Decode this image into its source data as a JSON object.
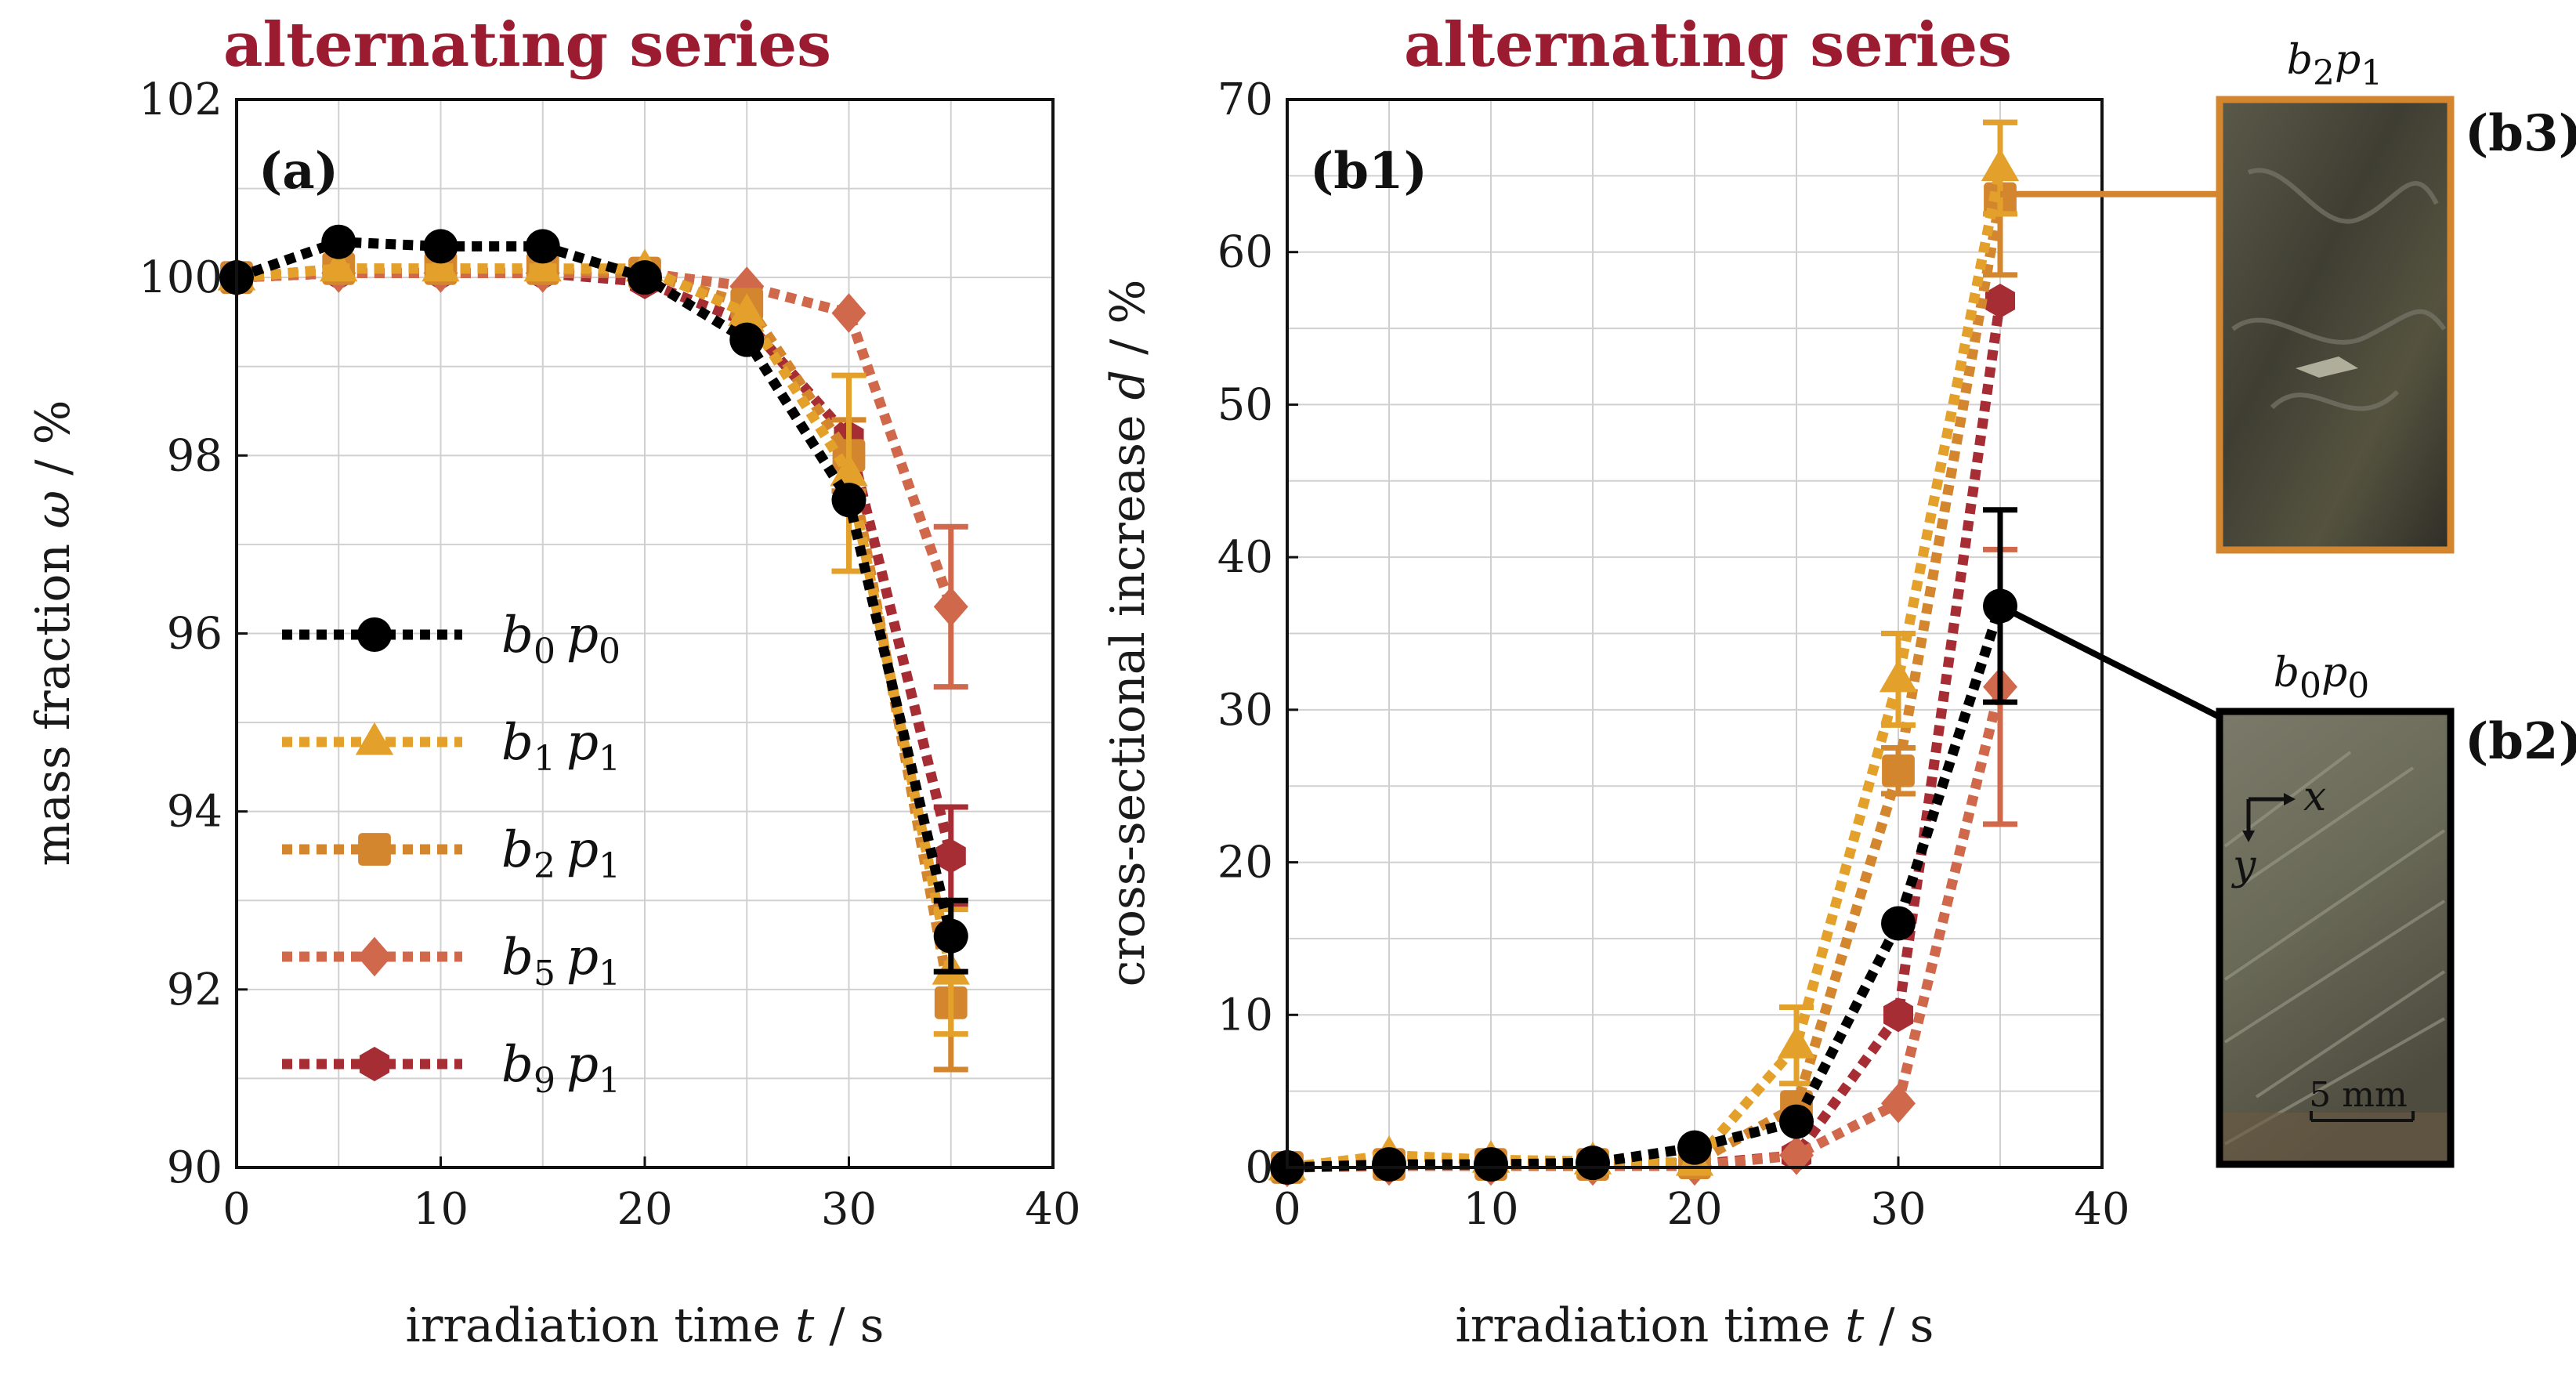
{
  "chart_data": [
    {
      "type": "line",
      "panel_label": "(a)",
      "title": "alternating series",
      "xlabel": "irradiation time",
      "xlabel_var": "t",
      "xlabel_unit": " / s",
      "ylabel": "mass fraction",
      "ylabel_var": "ω",
      "ylabel_unit": " / %",
      "xlim": [
        0,
        40
      ],
      "ylim": [
        90,
        102
      ],
      "xticks": [
        "0",
        "10",
        "20",
        "30",
        "40"
      ],
      "yticks": [
        "90",
        "92",
        "94",
        "96",
        "98",
        "100",
        "102"
      ],
      "grid": true,
      "legend_position": "center-left",
      "series": [
        {
          "name": "b0 p0",
          "b_sub": "0",
          "p_sub": "0",
          "color": "#000000",
          "marker": "circle",
          "x": [
            0,
            5,
            10,
            15,
            20,
            25,
            30,
            35
          ],
          "y": [
            100.0,
            100.4,
            100.35,
            100.35,
            100.0,
            99.3,
            97.5,
            92.6
          ],
          "err": [
            0,
            0,
            0,
            0,
            0,
            0,
            0,
            0.4
          ]
        },
        {
          "name": "b1 p1",
          "b_sub": "1",
          "p_sub": "1",
          "color": "#e3a12b",
          "marker": "triangle",
          "x": [
            0,
            5,
            10,
            15,
            20,
            25,
            30,
            35
          ],
          "y": [
            100.0,
            100.1,
            100.1,
            100.1,
            100.1,
            99.6,
            97.8,
            92.2
          ],
          "err": [
            0,
            0,
            0,
            0,
            0,
            0,
            1.1,
            0.7
          ]
        },
        {
          "name": "b2 p1",
          "b_sub": "2",
          "p_sub": "1",
          "color": "#d4862e",
          "marker": "square",
          "x": [
            0,
            5,
            10,
            15,
            20,
            25,
            30,
            35
          ],
          "y": [
            100.0,
            100.1,
            100.1,
            100.1,
            100.05,
            99.7,
            98.0,
            91.85
          ],
          "err": [
            0,
            0,
            0,
            0,
            0,
            0,
            0.4,
            0.75
          ]
        },
        {
          "name": "b5 p1",
          "b_sub": "5",
          "p_sub": "1",
          "color": "#d0684c",
          "marker": "diamond",
          "x": [
            0,
            5,
            10,
            15,
            20,
            25,
            30,
            35
          ],
          "y": [
            100.0,
            100.05,
            100.05,
            100.05,
            100.05,
            99.9,
            99.6,
            96.3
          ],
          "err": [
            0,
            0,
            0,
            0,
            0,
            0,
            0,
            0.9
          ]
        },
        {
          "name": "b9 p1",
          "b_sub": "9",
          "p_sub": "1",
          "color": "#a52d33",
          "marker": "hexagon",
          "x": [
            0,
            5,
            10,
            15,
            20,
            25,
            30,
            35
          ],
          "y": [
            100.0,
            100.05,
            100.05,
            100.05,
            99.95,
            99.5,
            98.2,
            93.5
          ],
          "err": [
            0,
            0,
            0,
            0,
            0,
            0,
            0,
            0.55
          ]
        }
      ]
    },
    {
      "type": "line",
      "panel_label": "(b1)",
      "title": "alternating series",
      "xlabel": "irradiation time",
      "xlabel_var": "t",
      "xlabel_unit": " / s",
      "ylabel": "cross-sectional increase",
      "ylabel_var": "d",
      "ylabel_unit": " / %",
      "xlim": [
        0,
        40
      ],
      "ylim": [
        0,
        70
      ],
      "xticks": [
        "0",
        "10",
        "20",
        "30",
        "40"
      ],
      "yticks": [
        "0",
        "10",
        "20",
        "30",
        "40",
        "50",
        "60",
        "70"
      ],
      "grid": true,
      "series": [
        {
          "name": "b0 p0",
          "color": "#000000",
          "marker": "circle",
          "x": [
            0,
            5,
            10,
            15,
            20,
            25,
            30,
            35
          ],
          "y": [
            0,
            0.2,
            0.2,
            0.3,
            1.3,
            3.0,
            16.0,
            36.8
          ],
          "err": [
            0,
            0,
            0,
            0,
            0,
            0,
            0,
            6.3
          ]
        },
        {
          "name": "b1 p1",
          "color": "#e3a12b",
          "marker": "triangle",
          "x": [
            0,
            5,
            10,
            15,
            20,
            25,
            30,
            35
          ],
          "y": [
            0,
            0.8,
            0.5,
            0.4,
            0.3,
            8.0,
            32.0,
            65.5
          ],
          "err": [
            0,
            0,
            0,
            0,
            0,
            2.5,
            3.0,
            3.0
          ]
        },
        {
          "name": "b2 p1",
          "color": "#d4862e",
          "marker": "square",
          "x": [
            0,
            5,
            10,
            15,
            20,
            25,
            30,
            35
          ],
          "y": [
            0,
            0.2,
            0.2,
            0.2,
            0.3,
            4.0,
            26.0,
            63.5
          ],
          "err": [
            0,
            0,
            0,
            0,
            0,
            0,
            1.5,
            5.0
          ]
        },
        {
          "name": "b5 p1",
          "color": "#d0684c",
          "marker": "diamond",
          "x": [
            0,
            5,
            10,
            15,
            20,
            25,
            30,
            35
          ],
          "y": [
            0,
            0.1,
            0.1,
            0.1,
            0.1,
            0.8,
            4.2,
            31.5
          ],
          "err": [
            0,
            0,
            0,
            0,
            0,
            0,
            0,
            9.0
          ]
        },
        {
          "name": "b9 p1",
          "color": "#a52d33",
          "marker": "hexagon",
          "x": [
            0,
            5,
            10,
            15,
            20,
            25,
            30,
            35
          ],
          "y": [
            0,
            0.1,
            0.1,
            0.3,
            0.2,
            0.8,
            10.0,
            56.8
          ],
          "err": [
            0,
            0,
            0,
            0,
            0,
            0,
            0,
            0
          ]
        }
      ]
    }
  ],
  "insets": [
    {
      "label": "(b3)",
      "title": "b2p1",
      "title_b_sub": "2",
      "title_p_sub": "1",
      "border_color": "#d4862e",
      "points_to_series": "b2 p1",
      "points_to_x": 35,
      "points_to_y": 63.8
    },
    {
      "label": "(b2)",
      "title": "b0p0",
      "title_b_sub": "0",
      "title_p_sub": "0",
      "border_color": "#000000",
      "points_to_series": "b0 p0",
      "points_to_x": 35,
      "points_to_y": 36.8,
      "axis_x": "x",
      "axis_y": "y",
      "scale_bar": "5 mm"
    }
  ]
}
